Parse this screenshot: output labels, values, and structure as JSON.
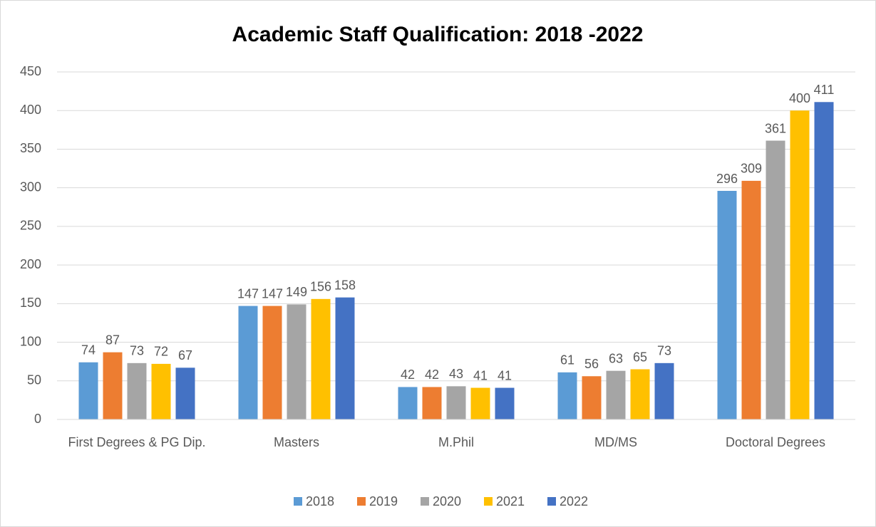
{
  "chart_data": {
    "type": "bar",
    "title": "Academic Staff Qualification: 2018 -2022",
    "categories": [
      "First Degrees & PG Dip.",
      "Masters",
      "M.Phil",
      "MD/MS",
      "Doctoral Degrees"
    ],
    "series": [
      {
        "name": "2018",
        "color": "#5b9bd5",
        "values": [
          74,
          147,
          42,
          61,
          296
        ]
      },
      {
        "name": "2019",
        "color": "#ed7d31",
        "values": [
          87,
          147,
          42,
          56,
          309
        ]
      },
      {
        "name": "2020",
        "color": "#a5a5a5",
        "values": [
          73,
          149,
          43,
          63,
          361
        ]
      },
      {
        "name": "2021",
        "color": "#ffc000",
        "values": [
          72,
          156,
          41,
          65,
          400
        ]
      },
      {
        "name": "2022",
        "color": "#4472c4",
        "values": [
          67,
          158,
          41,
          73,
          411
        ]
      }
    ],
    "ylim": [
      0,
      450
    ],
    "yticks": [
      0,
      50,
      100,
      150,
      200,
      250,
      300,
      350,
      400,
      450
    ],
    "grid": true,
    "legend": "bottom"
  }
}
